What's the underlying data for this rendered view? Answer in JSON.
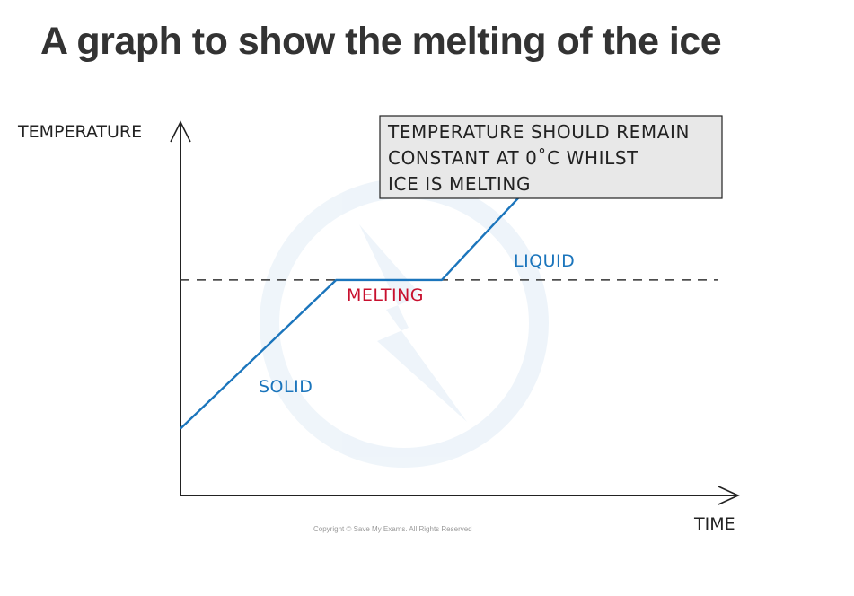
{
  "title": "A graph to show the melting of the ice",
  "copyright": "Copyright © Save My Exams. All Rights Reserved",
  "colors": {
    "line": "#1b75bc",
    "melting": "#c8102e",
    "axis": "#222222",
    "note_bg": "#e8e8e8"
  },
  "chart_data": {
    "type": "line",
    "xlabel": "TIME",
    "ylabel": "TEMPERATURE",
    "x_ticks": [],
    "y_ticks": [],
    "xlim": [
      0,
      10
    ],
    "ylim": [
      0,
      10
    ],
    "series": [
      {
        "x": [
          0,
          2.8,
          4.7,
          6.7
        ],
        "y": [
          1.8,
          5.8,
          5.8,
          9.0
        ]
      }
    ],
    "reference_line": {
      "y": 5.8,
      "style": "dashed"
    },
    "annotations": {
      "solid": "SOLID",
      "melting": "MELTING",
      "liquid": "LIQUID",
      "note_lines": [
        "TEMPERATURE SHOULD REMAIN",
        "CONSTANT AT 0˚C WHILST",
        "ICE IS MELTING"
      ]
    },
    "grid": false,
    "legend": "none"
  }
}
